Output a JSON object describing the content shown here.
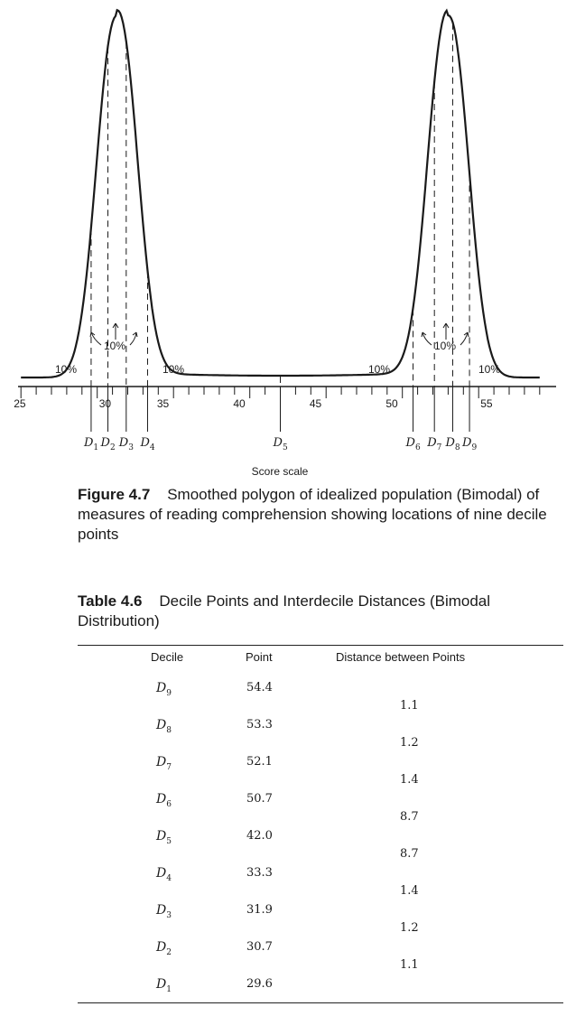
{
  "figure": {
    "number": "Figure 4.7",
    "caption": "Smoothed polygon of idealized population (Bimodal) of measures of reading comprehension showing locations of nine decile points",
    "axis_label": "Score scale",
    "tick_labels": [
      "25",
      "30",
      "35",
      "40",
      "45",
      "50",
      "55"
    ],
    "percent_labels": [
      "10%",
      "10%",
      "10%",
      "10%",
      "10%",
      "10%"
    ],
    "decile_symbol": "D",
    "decile_subscripts": [
      "1",
      "2",
      "3",
      "4",
      "5",
      "6",
      "7",
      "8",
      "9"
    ]
  },
  "chart_data": {
    "type": "line",
    "x_axis": {
      "range": [
        25,
        59
      ],
      "ticks": [
        25,
        30,
        35,
        40,
        45,
        50,
        55
      ]
    },
    "decile_points": [
      29.6,
      30.7,
      31.9,
      33.3,
      42.0,
      50.7,
      52.1,
      53.3,
      54.4
    ],
    "modes": [
      31.3,
      53.0
    ],
    "region_percent": 10
  },
  "table": {
    "number": "Table 4.6",
    "title": "Decile Points and Interdecile Distances (Bimodal Distribution)",
    "headers": [
      "Decile",
      "Point",
      "Distance between Points"
    ],
    "rows": [
      {
        "decile": "D",
        "sub": "9",
        "point": "54.4"
      },
      {
        "decile": "D",
        "sub": "8",
        "point": "53.3"
      },
      {
        "decile": "D",
        "sub": "7",
        "point": "52.1"
      },
      {
        "decile": "D",
        "sub": "6",
        "point": "50.7"
      },
      {
        "decile": "D",
        "sub": "5",
        "point": "42.0"
      },
      {
        "decile": "D",
        "sub": "4",
        "point": "33.3"
      },
      {
        "decile": "D",
        "sub": "3",
        "point": "31.9"
      },
      {
        "decile": "D",
        "sub": "2",
        "point": "30.7"
      },
      {
        "decile": "D",
        "sub": "1",
        "point": "29.6"
      }
    ],
    "distances": [
      "1.1",
      "1.2",
      "1.4",
      "8.7",
      "8.7",
      "1.4",
      "1.2",
      "1.1"
    ]
  }
}
